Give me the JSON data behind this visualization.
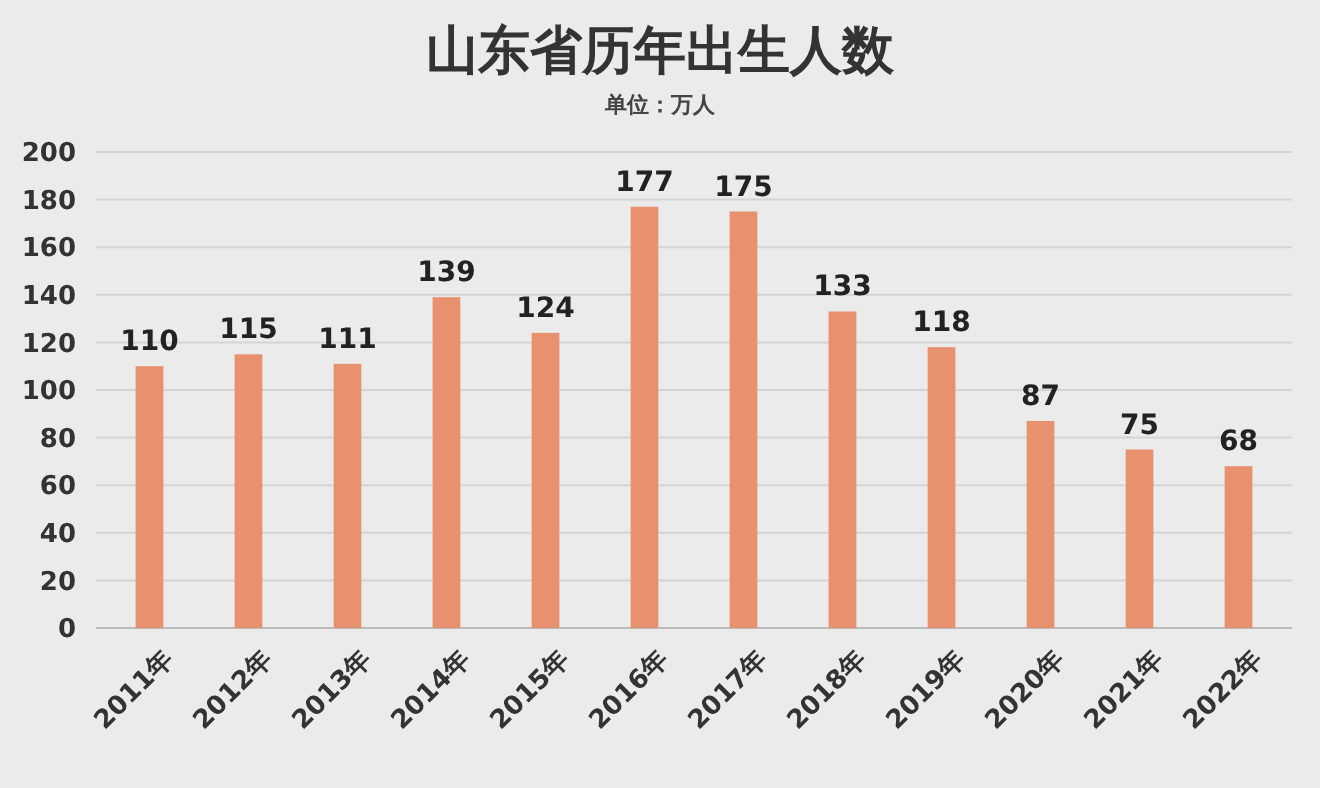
{
  "chart_data": {
    "type": "bar",
    "title": "山东省历年出生人数",
    "subtitle": "单位：万人",
    "categories": [
      "2011年",
      "2012年",
      "2013年",
      "2014年",
      "2015年",
      "2016年",
      "2017年",
      "2018年",
      "2019年",
      "2020年",
      "2021年",
      "2022年"
    ],
    "values": [
      110,
      115,
      111,
      139,
      124,
      177,
      175,
      133,
      118,
      87,
      75,
      68
    ],
    "color": "#e8916f",
    "ylim": [
      0,
      200
    ],
    "yticks": [
      0,
      20,
      40,
      60,
      80,
      100,
      120,
      140,
      160,
      180,
      200
    ],
    "grid": "y",
    "data_labels": true
  }
}
